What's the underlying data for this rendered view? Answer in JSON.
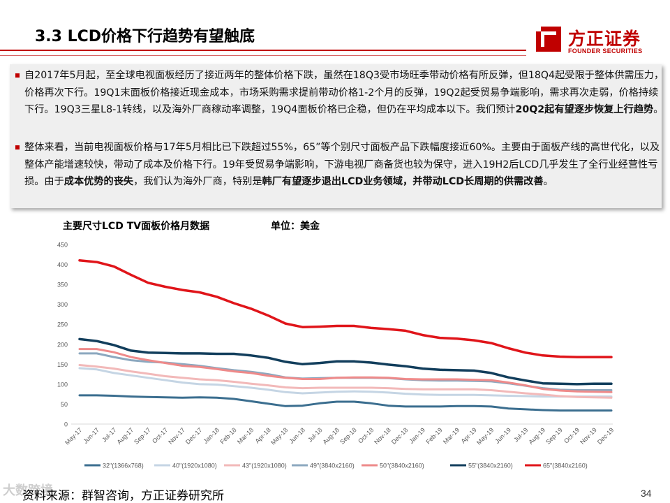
{
  "header": {
    "title": "3.3 LCD价格下行趋势有望触底",
    "logo_cn": "方正证券",
    "logo_en": "FOUNDER SECURITIES"
  },
  "bullets": [
    {
      "segments": [
        {
          "text": "自2017年5月起，至全球电视面板经历了接近两年的整体价格下跌，虽然在18Q3受市场旺季带动价格有所反弹，但18Q4起受限于整体供需压力，价格再次下行。19Q1末面板价格接近现金成本，市场采购需求提前带动价格1-2个月的反弹，19Q2起受贸易争端影响，需求再次走弱，价格持续下行。19Q3三星L8-1转线，以及海外厂商稼动率调整，19Q4面板价格已企稳，但仍在平均成本以下。我们预计",
          "bold": false
        },
        {
          "text": "20Q2起有望逐步恢复上行趋势",
          "bold": true
        },
        {
          "text": "。",
          "bold": false
        }
      ]
    },
    {
      "segments": [
        {
          "text": "整体来看，当前电视面板价格与17年5月相比已下跌超过55%，65”等个别尺寸面板产品下跌幅度接近60%。主要由于面板产线的高世代化，以及整体产能增速较快，带动了成本及价格下行。19年受贸易争端影响，下游电视厂商备货也较为保守，进入19H2后LCD几乎发生了全行业经营性亏损。由于",
          "bold": false
        },
        {
          "text": "成本优势的丧失",
          "bold": true
        },
        {
          "text": "，我们认为海外厂商，特别是",
          "bold": false
        },
        {
          "text": "韩厂有望逐步退出LCD业务领域，并带动LCD长周期的供需改善",
          "bold": true
        },
        {
          "text": "。",
          "bold": false
        }
      ]
    }
  ],
  "chart_heading": {
    "title": "主要尺寸LCD TV面板价格月数据",
    "unit": "单位：美金"
  },
  "chart_data": {
    "type": "line",
    "title": "主要尺寸LCD TV面板价格月数据",
    "ylabel": "单位：美金",
    "ylim": [
      0,
      450
    ],
    "yticks": [
      0,
      50,
      100,
      150,
      200,
      250,
      300,
      350,
      400,
      450
    ],
    "grid": false,
    "legend": "bottom",
    "categories": [
      "May-17",
      "Jun-17",
      "Jul-17",
      "Aug-17",
      "Sep-17",
      "Oct-17",
      "Nov-17",
      "Dec-17",
      "Jan-18",
      "Feb-18",
      "Mar-18",
      "Apr-18",
      "May-18",
      "Jun-18",
      "Jul-18",
      "Aug-18",
      "Sep-18",
      "Oct-18",
      "Nov-18",
      "Dec-18",
      "Jan-19",
      "Feb-19",
      "Mar-19",
      "Apr-19",
      "May-19",
      "Jun-19",
      "Jul-19",
      "Aug-19",
      "Sep-19",
      "Oct-19",
      "Nov-19",
      "Dec-19"
    ],
    "series": [
      {
        "name": "32\"(1366x768)",
        "color": "#3b6e8f",
        "width": 3,
        "values": [
          72,
          72,
          71,
          69,
          68,
          67,
          66,
          67,
          66,
          63,
          57,
          51,
          45,
          46,
          52,
          56,
          56,
          52,
          46,
          44,
          44,
          44,
          45,
          45,
          44,
          39,
          37,
          35,
          34,
          34,
          34,
          34
        ]
      },
      {
        "name": "40\"(1920x1080)",
        "color": "#c5d5e4",
        "width": 3,
        "values": [
          140,
          137,
          128,
          122,
          116,
          110,
          104,
          100,
          99,
          95,
          91,
          86,
          80,
          77,
          79,
          81,
          82,
          81,
          79,
          76,
          74,
          73,
          73,
          73,
          72,
          71,
          70,
          69,
          69,
          69,
          69,
          69
        ]
      },
      {
        "name": "43\"(1920x1080)",
        "color": "#f2b9b9",
        "width": 3,
        "values": [
          148,
          144,
          139,
          132,
          126,
          120,
          116,
          112,
          110,
          106,
          101,
          97,
          92,
          90,
          91,
          91,
          91,
          91,
          90,
          88,
          87,
          87,
          87,
          87,
          85,
          81,
          77,
          74,
          70,
          68,
          67,
          66
        ]
      },
      {
        "name": "49\"(3840x2160)",
        "color": "#8ca8bf",
        "width": 3,
        "values": [
          177,
          177,
          168,
          160,
          156,
          154,
          150,
          146,
          140,
          135,
          131,
          125,
          117,
          114,
          115,
          116,
          116,
          116,
          115,
          112,
          110,
          109,
          109,
          108,
          107,
          102,
          96,
          90,
          86,
          85,
          85,
          85
        ]
      },
      {
        "name": "50\"(3840x2160)",
        "color": "#ee8a8a",
        "width": 3,
        "values": [
          188,
          188,
          180,
          168,
          160,
          153,
          146,
          143,
          138,
          132,
          128,
          121,
          116,
          113,
          113,
          116,
          117,
          117,
          116,
          113,
          112,
          112,
          112,
          111,
          110,
          104,
          97,
          88,
          84,
          82,
          81,
          80
        ]
      },
      {
        "name": "55\"(3840x2160)",
        "color": "#123e5c",
        "width": 3.5,
        "values": [
          213,
          208,
          198,
          184,
          179,
          178,
          177,
          177,
          176,
          176,
          172,
          166,
          156,
          150,
          153,
          157,
          157,
          154,
          149,
          145,
          139,
          136,
          135,
          134,
          128,
          117,
          109,
          102,
          101,
          100,
          101,
          101
        ]
      },
      {
        "name": "65\"(3840x2160)",
        "color": "#e0151a",
        "width": 3.5,
        "values": [
          410,
          406,
          395,
          374,
          354,
          344,
          336,
          330,
          319,
          303,
          289,
          272,
          252,
          243,
          244,
          246,
          246,
          241,
          238,
          234,
          223,
          216,
          214,
          210,
          203,
          190,
          179,
          172,
          169,
          168,
          168,
          168
        ]
      }
    ]
  },
  "footer": {
    "source": "资料来源：群智咨询，方正证券研究所",
    "watermark": "大数跨境",
    "page": "34"
  }
}
